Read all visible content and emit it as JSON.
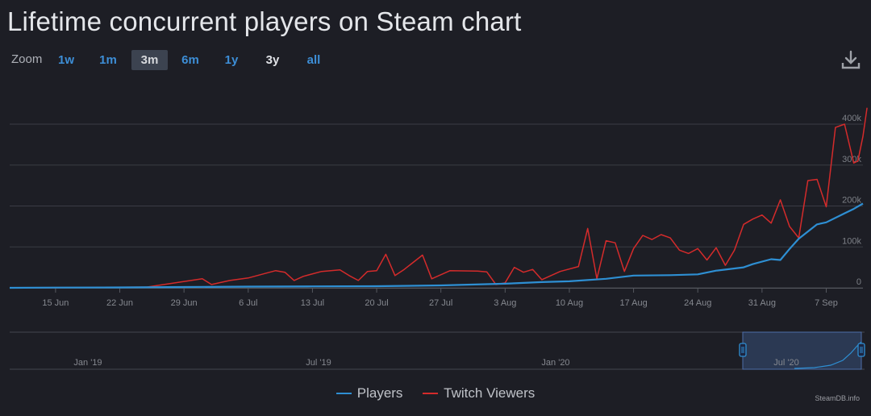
{
  "title": "Lifetime concurrent players on Steam chart",
  "zoom": {
    "label": "Zoom",
    "buttons": [
      "1w",
      "1m",
      "3m",
      "6m",
      "1y",
      "3y",
      "all"
    ],
    "active": "3m"
  },
  "legend": [
    {
      "name": "Players",
      "color": "#2e8fd3"
    },
    {
      "name": "Twitch Viewers",
      "color": "#d42b2b"
    }
  ],
  "credits": "SteamDB.info",
  "icons": {
    "download": "download-icon"
  },
  "chart_data": {
    "type": "line",
    "title": "Lifetime concurrent players on Steam chart",
    "x_ticks": [
      "15 Jun",
      "22 Jun",
      "29 Jun",
      "6 Jul",
      "13 Jul",
      "20 Jul",
      "27 Jul",
      "3 Aug",
      "10 Aug",
      "17 Aug",
      "24 Aug",
      "31 Aug",
      "7 Sep"
    ],
    "x_range": [
      "2020-06-10",
      "2020-09-11"
    ],
    "y_ticks": [
      "0",
      "100k",
      "200k",
      "300k",
      "400k"
    ],
    "ylim": [
      0,
      400000
    ],
    "grid": true,
    "legend_position": "bottom",
    "series": [
      {
        "name": "Players",
        "color": "#2e8fd3",
        "points": [
          [
            "2020-06-10",
            0
          ],
          [
            "2020-06-15",
            500
          ],
          [
            "2020-06-22",
            1000
          ],
          [
            "2020-06-29",
            2000
          ],
          [
            "2020-07-06",
            3000
          ],
          [
            "2020-07-13",
            3500
          ],
          [
            "2020-07-20",
            4000
          ],
          [
            "2020-07-27",
            6000
          ],
          [
            "2020-08-03",
            10000
          ],
          [
            "2020-08-07",
            14000
          ],
          [
            "2020-08-10",
            16000
          ],
          [
            "2020-08-14",
            22000
          ],
          [
            "2020-08-17",
            30000
          ],
          [
            "2020-08-21",
            31000
          ],
          [
            "2020-08-24",
            33000
          ],
          [
            "2020-08-26",
            42000
          ],
          [
            "2020-08-29",
            50000
          ],
          [
            "2020-08-30",
            58000
          ],
          [
            "2020-09-01",
            70000
          ],
          [
            "2020-09-02",
            68000
          ],
          [
            "2020-09-03",
            95000
          ],
          [
            "2020-09-04",
            120000
          ],
          [
            "2020-09-06",
            155000
          ],
          [
            "2020-09-07",
            160000
          ],
          [
            "2020-09-09",
            182000
          ],
          [
            "2020-09-10",
            193000
          ],
          [
            "2020-09-11",
            206000
          ]
        ]
      },
      {
        "name": "Twitch Viewers",
        "color": "#d42b2b",
        "points": [
          [
            "2020-06-10",
            0
          ],
          [
            "2020-06-18",
            500
          ],
          [
            "2020-06-25",
            2000
          ],
          [
            "2020-07-01",
            22000
          ],
          [
            "2020-07-02",
            8000
          ],
          [
            "2020-07-04",
            18000
          ],
          [
            "2020-07-06",
            24000
          ],
          [
            "2020-07-08",
            36000
          ],
          [
            "2020-07-09",
            42000
          ],
          [
            "2020-07-10",
            38000
          ],
          [
            "2020-07-11",
            18000
          ],
          [
            "2020-07-12",
            28000
          ],
          [
            "2020-07-14",
            40000
          ],
          [
            "2020-07-16",
            44000
          ],
          [
            "2020-07-17",
            30000
          ],
          [
            "2020-07-18",
            18000
          ],
          [
            "2020-07-19",
            40000
          ],
          [
            "2020-07-20",
            42000
          ],
          [
            "2020-07-21",
            82000
          ],
          [
            "2020-07-22",
            30000
          ],
          [
            "2020-07-23",
            45000
          ],
          [
            "2020-07-25",
            80000
          ],
          [
            "2020-07-26",
            22000
          ],
          [
            "2020-07-28",
            42000
          ],
          [
            "2020-07-31",
            41000
          ],
          [
            "2020-08-01",
            39000
          ],
          [
            "2020-08-02",
            8000
          ],
          [
            "2020-08-03",
            12000
          ],
          [
            "2020-08-04",
            50000
          ],
          [
            "2020-08-05",
            38000
          ],
          [
            "2020-08-06",
            45000
          ],
          [
            "2020-08-07",
            20000
          ],
          [
            "2020-08-09",
            40000
          ],
          [
            "2020-08-11",
            52000
          ],
          [
            "2020-08-12",
            145000
          ],
          [
            "2020-08-13",
            22000
          ],
          [
            "2020-08-14",
            115000
          ],
          [
            "2020-08-15",
            110000
          ],
          [
            "2020-08-16",
            40000
          ],
          [
            "2020-08-17",
            96000
          ],
          [
            "2020-08-18",
            128000
          ],
          [
            "2020-08-19",
            118000
          ],
          [
            "2020-08-20",
            130000
          ],
          [
            "2020-08-21",
            122000
          ],
          [
            "2020-08-22",
            92000
          ],
          [
            "2020-08-23",
            84000
          ],
          [
            "2020-08-24",
            96000
          ],
          [
            "2020-08-25",
            68000
          ],
          [
            "2020-08-26",
            98000
          ],
          [
            "2020-08-27",
            55000
          ],
          [
            "2020-08-28",
            92000
          ],
          [
            "2020-08-29",
            155000
          ],
          [
            "2020-08-30",
            168000
          ],
          [
            "2020-08-31",
            178000
          ],
          [
            "2020-09-01",
            158000
          ],
          [
            "2020-09-02",
            215000
          ],
          [
            "2020-09-03",
            150000
          ],
          [
            "2020-09-04",
            122000
          ],
          [
            "2020-09-05",
            262000
          ],
          [
            "2020-09-06",
            265000
          ],
          [
            "2020-09-07",
            198000
          ],
          [
            "2020-09-08",
            392000
          ],
          [
            "2020-09-09",
            400000
          ],
          [
            "2020-09-10",
            305000
          ],
          [
            "2020-09-10",
            310000
          ],
          [
            "2020-09-11",
            370000
          ],
          [
            "2020-09-11",
            440000
          ]
        ]
      }
    ],
    "navigator": {
      "labels": [
        "Jan '19",
        "Jul '19",
        "Jan '20",
        "Jul '20"
      ],
      "selected_range": [
        "2020-06-10",
        "2020-09-11"
      ]
    }
  }
}
